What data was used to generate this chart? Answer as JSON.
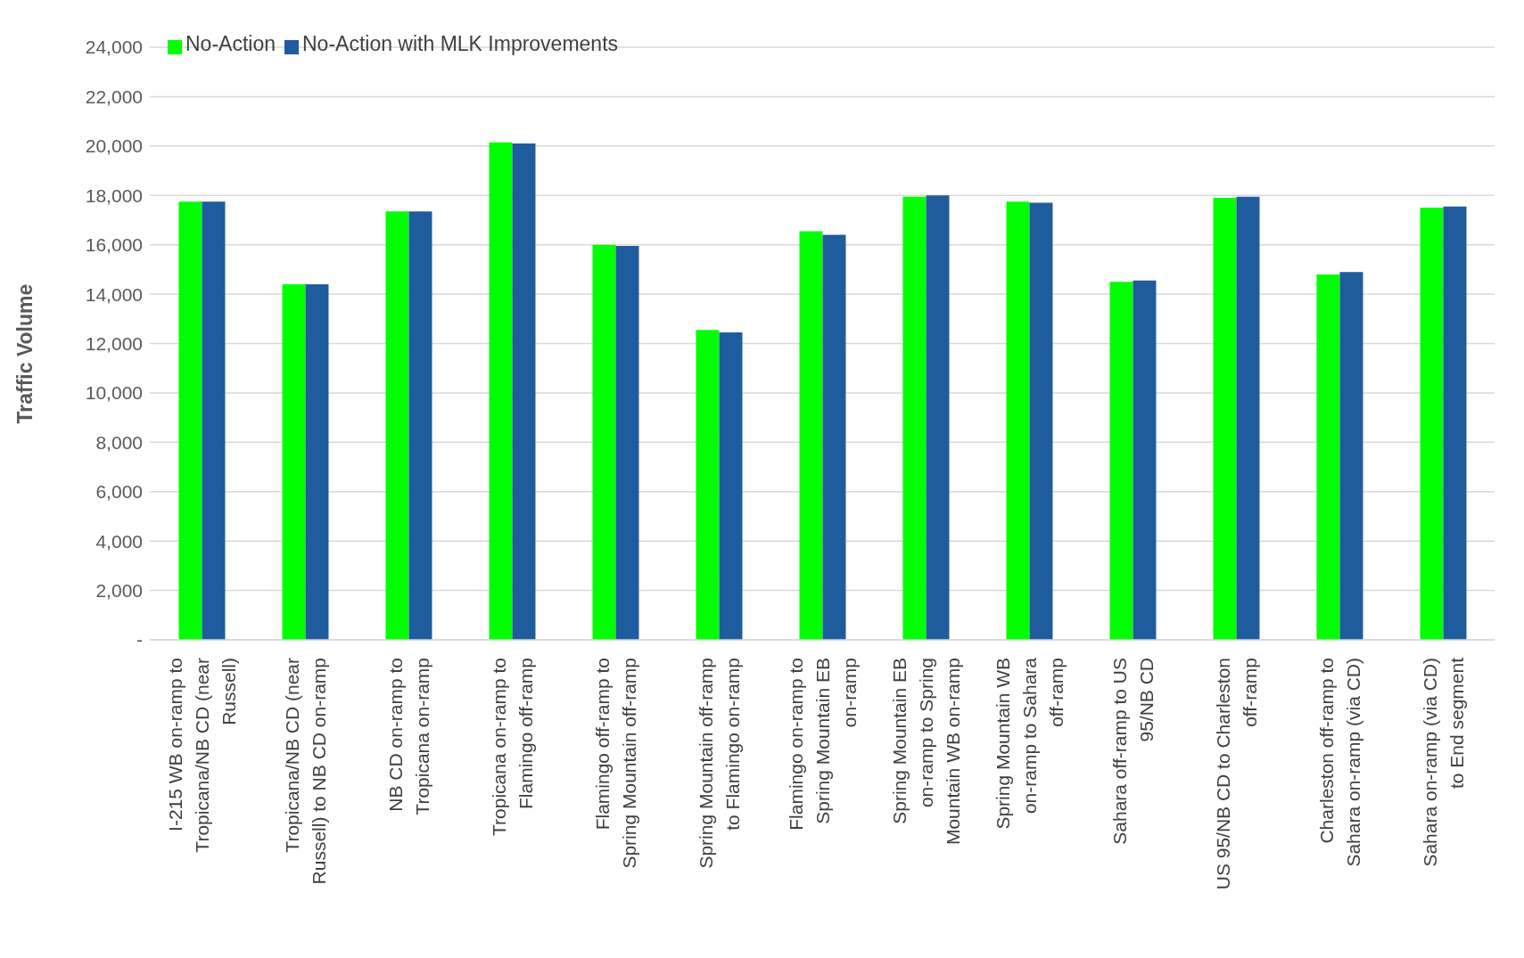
{
  "chart_data": {
    "type": "bar",
    "ylabel": "Traffic Volume",
    "categories": [
      "I-215 WB on-ramp to Tropicana/NB CD (near Russell)",
      "Tropicana/NB CD (near Russell) to NB CD on-ramp",
      "NB CD on-ramp to Tropicana on-ramp",
      "Tropicana on-ramp to Flamingo off-ramp",
      "Flamingo off-ramp to Spring Mountain off-ramp",
      "Spring Mountain off-ramp to Flamingo on-ramp",
      "Flamingo on-ramp to Spring Mountain EB on-ramp",
      "Spring Mountain EB on-ramp to Spring Mountain WB on-ramp",
      "Spring Mountain WB on-ramp to Sahara off-ramp",
      "Sahara off-ramp to US 95/NB CD",
      "US 95/NB CD to Charleston off-ramp",
      "Charleston off-ramp to Sahara on-ramp (via CD)",
      "Sahara on-ramp (via CD) to End segment"
    ],
    "series": [
      {
        "name": "No-Action",
        "color": "#00ff00",
        "values": [
          17750,
          14400,
          17350,
          20150,
          16000,
          12550,
          16550,
          17950,
          17750,
          14500,
          17900,
          14800,
          17500
        ]
      },
      {
        "name": "No-Action with MLK Improvements",
        "color": "#1f5c9e",
        "values": [
          17750,
          14400,
          17350,
          20100,
          15950,
          12450,
          16400,
          18000,
          17700,
          14550,
          17950,
          14900,
          17550
        ]
      }
    ],
    "ylim": [
      0,
      24000
    ],
    "yticks": [
      {
        "value": 0,
        "label": "-"
      },
      {
        "value": 2000,
        "label": "2,000"
      },
      {
        "value": 4000,
        "label": "4,000"
      },
      {
        "value": 6000,
        "label": "6,000"
      },
      {
        "value": 8000,
        "label": "8,000"
      },
      {
        "value": 10000,
        "label": "10,000"
      },
      {
        "value": 12000,
        "label": "12,000"
      },
      {
        "value": 14000,
        "label": "14,000"
      },
      {
        "value": 16000,
        "label": "16,000"
      },
      {
        "value": 18000,
        "label": "18,000"
      },
      {
        "value": 20000,
        "label": "20,000"
      },
      {
        "value": 22000,
        "label": "22,000"
      },
      {
        "value": 24000,
        "label": "24,000"
      }
    ],
    "grid": "y",
    "legend": "top left"
  }
}
